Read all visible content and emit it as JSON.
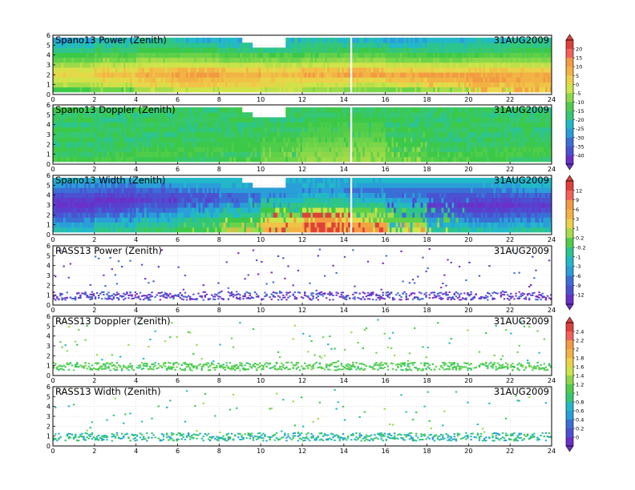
{
  "chart_data": {
    "type": "heatmap",
    "x_range": [
      0,
      24
    ],
    "x_ticks": [
      0,
      2,
      4,
      6,
      8,
      10,
      12,
      14,
      16,
      18,
      20,
      22,
      24
    ],
    "y_range": [
      0,
      6
    ],
    "y_ticks": [
      0,
      1,
      2,
      3,
      4,
      5,
      6
    ],
    "date": "31AUG2009",
    "grid": true,
    "panels": [
      {
        "title": "Spano13 Power (Zenith)",
        "style": "dense",
        "colorbar": "A",
        "gap_x": 14.3,
        "rows": [
          {
            "y": 0.5,
            "values": [
              "#3cc94a",
              "#6ad34a",
              "#a6dc4a",
              "#cde44a",
              "#d3e34a",
              "#bfe04a",
              "#9bda4a",
              "#7ad64a",
              "#6ad34a",
              "#a6dc4a",
              "#e9d74a",
              "#f2a443"
            ]
          },
          {
            "y": 1.0,
            "values": [
              "#a6dc4a",
              "#c8e24a",
              "#e5d849",
              "#f0c247",
              "#ecd04a",
              "#dcd94a",
              "#cde44a",
              "#b6df4a",
              "#c8e24a",
              "#e5d849",
              "#f2b245",
              "#f0c247"
            ]
          },
          {
            "y": 1.5,
            "values": [
              "#cde44a",
              "#e5d849",
              "#f0c247",
              "#f2b245",
              "#f0c247",
              "#e5d849",
              "#ecd04a",
              "#e5d849",
              "#f0c247",
              "#f2b245",
              "#f39a42",
              "#f2b245"
            ]
          },
          {
            "y": 2.0,
            "values": [
              "#e5d849",
              "#f0c247",
              "#f2b245",
              "#f39a42",
              "#f2b245",
              "#f0c247",
              "#f2b245",
              "#f39a42",
              "#f2b245",
              "#f39a42",
              "#f2a443",
              "#f2b245"
            ]
          },
          {
            "y": 2.5,
            "values": [
              "#d3e34a",
              "#e5d849",
              "#f0c247",
              "#f2b245",
              "#ecd04a",
              "#e5d849",
              "#f0c247",
              "#f2b245",
              "#ecd04a",
              "#e5d849",
              "#f0c247",
              "#ecd04a"
            ]
          },
          {
            "y": 3.0,
            "values": [
              "#9bda4a",
              "#bfe04a",
              "#cde44a",
              "#d3e34a",
              "#c8e24a",
              "#b6df4a",
              "#cde44a",
              "#d3e34a",
              "#c8e24a",
              "#bfe04a",
              "#cde44a",
              "#bfe04a"
            ]
          },
          {
            "y": 3.5,
            "values": [
              "#5fd049",
              "#7ad64a",
              "#a6dc4a",
              "#9bda4a",
              "#7ad64a",
              "#6ad34a",
              "#8dd84a",
              "#9bda4a",
              "#7ad64a",
              "#6ad34a",
              "#8dd84a",
              "#7ad64a"
            ]
          },
          {
            "y": 4.0,
            "values": [
              "#3cc94a",
              "#4fcd4a",
              "#5fd049",
              "#6ad34a",
              "#4fcd4a",
              "#3cc94a",
              "#5fd049",
              "#6ad34a",
              "#4fcd4a",
              "#3cc94a",
              "#4fcd4a",
              "#5fd049"
            ]
          },
          {
            "y": 4.5,
            "values": [
              "#2cc48f",
              "#36c776",
              "#3cc94a",
              "#3cc94a",
              "#36c776",
              "#2cc48f",
              "#36c776",
              "#3cc94a",
              "#36c776",
              "#2cc48f",
              "#36c776",
              "#3cc94a"
            ]
          },
          {
            "y": 5.0,
            "values": [
              "#22b8c8",
              "#2cc48f",
              "#36c776",
              "#2cc48f",
              "#22b8c8",
              "#2cc48f",
              "#36c776",
              "#2cc48f",
              "#22b8c8",
              "#2cc48f",
              "#2cc48f",
              "#36c776"
            ]
          },
          {
            "y": 5.5,
            "values": [
              "#2a9ed8",
              "#22b8c8",
              "#2cc48f",
              "#22b8c8",
              "#2a9ed8",
              "#22b8c8",
              "#2cc48f",
              "#22b8c8",
              "#2a9ed8",
              "#22b8c8",
              "#22b8c8",
              "#2cc48f"
            ]
          }
        ]
      },
      {
        "title": "Spano13 Doppler (Zenith)",
        "style": "dense",
        "colorbar": "A",
        "gap_x": 14.3,
        "rows": [
          {
            "y": 0.5,
            "values": [
              "#3cc94a",
              "#4fcd4a",
              "#3cc94a",
              "#36c776",
              "#3cc94a",
              "#6ad34a",
              "#9bda4a",
              "#a6dc4a",
              "#6ad34a",
              "#4fcd4a",
              "#3cc94a",
              "#36c776"
            ]
          },
          {
            "y": 1.0,
            "values": [
              "#36c776",
              "#3cc94a",
              "#4fcd4a",
              "#3cc94a",
              "#36c776",
              "#5fd049",
              "#8dd84a",
              "#9bda4a",
              "#5fd049",
              "#3cc94a",
              "#4fcd4a",
              "#3cc94a"
            ]
          },
          {
            "y": 1.5,
            "values": [
              "#3cc94a",
              "#36c776",
              "#3cc94a",
              "#4fcd4a",
              "#3cc94a",
              "#4fcd4a",
              "#7ad64a",
              "#8dd84a",
              "#4fcd4a",
              "#36c776",
              "#3cc94a",
              "#4fcd4a"
            ]
          },
          {
            "y": 2.0,
            "values": [
              "#2cc48f",
              "#3cc94a",
              "#36c776",
              "#3cc94a",
              "#3cc94a",
              "#4fcd4a",
              "#6ad34a",
              "#7ad64a",
              "#3cc94a",
              "#3cc94a",
              "#36c776",
              "#3cc94a"
            ]
          },
          {
            "y": 2.5,
            "values": [
              "#3cc94a",
              "#2cc48f",
              "#3cc94a",
              "#36c776",
              "#3cc94a",
              "#3cc94a",
              "#5fd049",
              "#6ad34a",
              "#3cc94a",
              "#2cc48f",
              "#3cc94a",
              "#36c776"
            ]
          },
          {
            "y": 3.0,
            "values": [
              "#36c776",
              "#3cc94a",
              "#2cc48f",
              "#3cc94a",
              "#36c776",
              "#3cc94a",
              "#4fcd4a",
              "#5fd049",
              "#36c776",
              "#3cc94a",
              "#2cc48f",
              "#3cc94a"
            ]
          },
          {
            "y": 3.5,
            "values": [
              "#3cc94a",
              "#36c776",
              "#3cc94a",
              "#2cc48f",
              "#3cc94a",
              "#36c776",
              "#4fcd4a",
              "#4fcd4a",
              "#3cc94a",
              "#36c776",
              "#3cc94a",
              "#2cc48f"
            ]
          },
          {
            "y": 4.0,
            "values": [
              "#2cc48f",
              "#3cc94a",
              "#36c776",
              "#3cc94a",
              "#2cc48f",
              "#3cc94a",
              "#3cc94a",
              "#4fcd4a",
              "#2cc48f",
              "#3cc94a",
              "#36c776",
              "#3cc94a"
            ]
          },
          {
            "y": 4.5,
            "values": [
              "#3cc94a",
              "#2cc48f",
              "#3cc94a",
              "#36c776",
              "#3cc94a",
              "#2cc48f",
              "#3cc94a",
              "#3cc94a",
              "#3cc94a",
              "#2cc48f",
              "#3cc94a",
              "#36c776"
            ]
          },
          {
            "y": 5.0,
            "values": [
              "#36c776",
              "#3cc94a",
              "#2cc48f",
              "#3cc94a",
              "#36c776",
              "#3cc94a",
              "#36c776",
              "#3cc94a",
              "#36c776",
              "#3cc94a",
              "#2cc48f",
              "#3cc94a"
            ]
          },
          {
            "y": 5.5,
            "values": [
              "#3cc94a",
              "#36c776",
              "#3cc94a",
              "#2cc48f",
              "#3cc94a",
              "#36c776",
              "#3cc94a",
              "#36c776",
              "#3cc94a",
              "#36c776",
              "#3cc94a",
              "#2cc48f"
            ]
          }
        ]
      },
      {
        "title": "Spano13 Width (Zenith)",
        "style": "dense",
        "colorbar": "B",
        "gap_x": 14.3,
        "rows": [
          {
            "y": 0.5,
            "values": [
              "#22b8c8",
              "#2cc48f",
              "#36c776",
              "#3cc94a",
              "#9bda4a",
              "#f2b245",
              "#e0403a",
              "#f39a42",
              "#cde44a",
              "#2cc48f",
              "#22b8c8",
              "#2cc48f"
            ]
          },
          {
            "y": 1.0,
            "values": [
              "#2a9ed8",
              "#22b8c8",
              "#2cc48f",
              "#36c776",
              "#6ad34a",
              "#f0c247",
              "#e0403a",
              "#f2a443",
              "#a6dc4a",
              "#22b8c8",
              "#2a9ed8",
              "#22b8c8"
            ]
          },
          {
            "y": 1.5,
            "values": [
              "#3a6fd6",
              "#2a9ed8",
              "#22b8c8",
              "#2cc48f",
              "#3cc94a",
              "#cde44a",
              "#f39a42",
              "#e5d849",
              "#5fd049",
              "#2a9ed8",
              "#3a6fd6",
              "#2a9ed8"
            ]
          },
          {
            "y": 2.0,
            "values": [
              "#4b52d2",
              "#3a6fd6",
              "#2a9ed8",
              "#22b8c8",
              "#2cc48f",
              "#7ad64a",
              "#e0403a",
              "#a6dc4a",
              "#36c776",
              "#3a6fd6",
              "#4b52d2",
              "#3a6fd6"
            ]
          },
          {
            "y": 2.5,
            "values": [
              "#5a3fce",
              "#4b52d2",
              "#3a6fd6",
              "#2a9ed8",
              "#22b8c8",
              "#3cc94a",
              "#cde44a",
              "#5fd049",
              "#2cc48f",
              "#4b52d2",
              "#5a3fce",
              "#4b52d2"
            ]
          },
          {
            "y": 3.0,
            "values": [
              "#6a30c8",
              "#5a3fce",
              "#4b52d2",
              "#3a6fd6",
              "#2a9ed8",
              "#2cc48f",
              "#36c776",
              "#2cc48f",
              "#22b8c8",
              "#5a3fce",
              "#6a30c8",
              "#5a3fce"
            ]
          },
          {
            "y": 3.5,
            "values": [
              "#5a3fce",
              "#6a30c8",
              "#5a3fce",
              "#4b52d2",
              "#3a6fd6",
              "#22b8c8",
              "#2cc48f",
              "#22b8c8",
              "#2a9ed8",
              "#4b52d2",
              "#5a3fce",
              "#4b52d2"
            ]
          },
          {
            "y": 4.0,
            "values": [
              "#4b52d2",
              "#5a3fce",
              "#4b52d2",
              "#4b52d2",
              "#3a6fd6",
              "#2a9ed8",
              "#22b8c8",
              "#2a9ed8",
              "#3a6fd6",
              "#4b52d2",
              "#4b52d2",
              "#3a6fd6"
            ]
          },
          {
            "y": 4.5,
            "values": [
              "#3a6fd6",
              "#4b52d2",
              "#3a6fd6",
              "#3a6fd6",
              "#2a9ed8",
              "#2a9ed8",
              "#2a9ed8",
              "#3a6fd6",
              "#3a6fd6",
              "#3a6fd6",
              "#3a6fd6",
              "#2a9ed8"
            ]
          },
          {
            "y": 5.0,
            "values": [
              "#2a9ed8",
              "#3a6fd6",
              "#2a9ed8",
              "#2a9ed8",
              "#22b8c8",
              "#2a9ed8",
              "#22b8c8",
              "#2a9ed8",
              "#2a9ed8",
              "#2a9ed8",
              "#2a9ed8",
              "#22b8c8"
            ]
          },
          {
            "y": 5.5,
            "values": [
              "#22b8c8",
              "#2a9ed8",
              "#22b8c8",
              "#22b8c8",
              "#22b8c8",
              "#22b8c8",
              "#2a9ed8",
              "#22b8c8",
              "#22b8c8",
              "#22b8c8",
              "#22b8c8",
              "#22b8c8"
            ]
          }
        ]
      },
      {
        "title": "RASS13 Power (Zenith)",
        "style": "sparse",
        "colorbar": "B",
        "band_colors": [
          "#4b52d2",
          "#6a30c8",
          "#8a28c0",
          "#3a6fd6",
          "#5a3fce"
        ],
        "scatter_colors": [
          "#6a30c8",
          "#8a28c0",
          "#4b52d2",
          "#3a6fd6"
        ]
      },
      {
        "title": "RASS13 Doppler (Zenith)",
        "style": "sparse",
        "colorbar": "C",
        "band_colors": [
          "#3cc94a",
          "#4fcd4a",
          "#5fd049",
          "#6ad34a",
          "#36c776"
        ],
        "scatter_colors": [
          "#3cc94a",
          "#6ad34a",
          "#22b8c8",
          "#9bda4a"
        ]
      },
      {
        "title": "RASS13 Width (Zenith)",
        "style": "sparse",
        "colorbar": "C",
        "band_colors": [
          "#22b8c8",
          "#2cc48f",
          "#36c776",
          "#3cc94a",
          "#2a9ed8"
        ],
        "scatter_colors": [
          "#22b8c8",
          "#3cc94a",
          "#2cc48f",
          "#9bda4a"
        ]
      }
    ],
    "colorbars": [
      {
        "id": "A",
        "labels": [
          "20",
          "15",
          "10",
          "5",
          "0",
          "-5",
          "-10",
          "-15",
          "-20",
          "-25",
          "-30",
          "-35",
          "-40"
        ],
        "colors": [
          "#e0403a",
          "#f2615a",
          "#f39a42",
          "#f2b245",
          "#ecd04a",
          "#cde44a",
          "#8dd84a",
          "#4fcd4a",
          "#36c776",
          "#22b8c8",
          "#2a9ed8",
          "#3a6fd6",
          "#4b52d2",
          "#6a30c8"
        ]
      },
      {
        "id": "B",
        "labels": [
          "12",
          "9",
          "6",
          "3",
          "1",
          "0.2",
          "-0.2",
          "-1",
          "-3",
          "-6",
          "-9",
          "-12"
        ],
        "colors": [
          "#e0403a",
          "#f2615a",
          "#f39a42",
          "#f2b245",
          "#ecd04a",
          "#a6dc4a",
          "#4fcd4a",
          "#2cc48f",
          "#22b8c8",
          "#2a9ed8",
          "#3a6fd6",
          "#4b52d2",
          "#6a30c8"
        ]
      },
      {
        "id": "C",
        "labels": [
          "2.4",
          "2.2",
          "2",
          "1.8",
          "1.6",
          "1.4",
          "1.2",
          "1",
          "0.8",
          "0.6",
          "0.4",
          "0.2",
          "0"
        ],
        "colors": [
          "#e0403a",
          "#f2615a",
          "#f39a42",
          "#f2b245",
          "#ecd04a",
          "#cde44a",
          "#8dd84a",
          "#4fcd4a",
          "#36c776",
          "#22b8c8",
          "#2a9ed8",
          "#3a6fd6",
          "#4b52d2",
          "#6a30c8"
        ]
      }
    ]
  }
}
